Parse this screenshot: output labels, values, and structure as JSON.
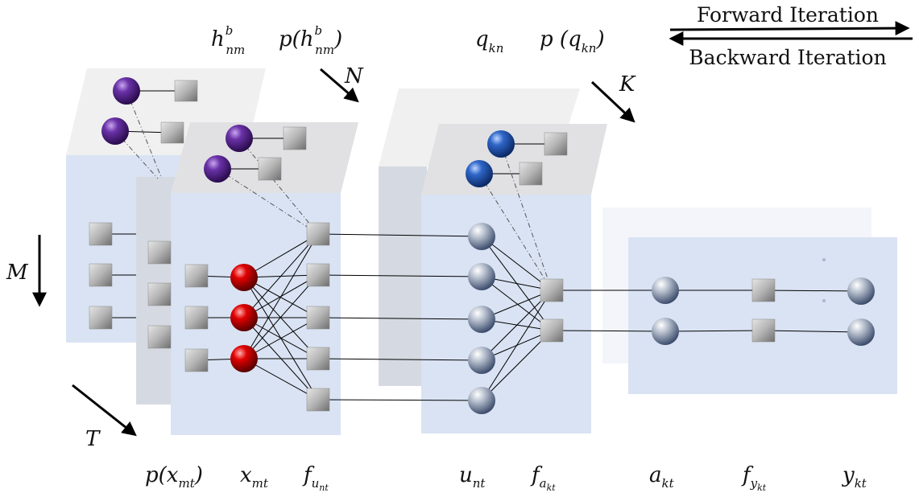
{
  "legend": {
    "forward": "Forward Iteration",
    "backward": "Backward Iteration"
  },
  "dims": {
    "N": "N",
    "K": "K",
    "M": "M",
    "T": "T"
  },
  "top_labels": {
    "h_base": "h",
    "h_sup": "b",
    "h_sub": "nm",
    "ph_open": "p(",
    "ph_base": "h",
    "ph_sup": "b",
    "ph_sub": "nm",
    "ph_close": ")",
    "q_base": "q",
    "q_sub": "kn",
    "pq_open": "p (",
    "pq_base": "q",
    "pq_sub": "kn",
    "pq_close": ")"
  },
  "bottom_labels": {
    "px_open": "p(",
    "px_base": "x",
    "px_sub": "mt",
    "px_close": ")",
    "x_base": "x",
    "x_sub": "mt",
    "fu_base": "f",
    "fu_sub": "u",
    "fu_subsub": "nt",
    "u_base": "u",
    "u_sub": "nt",
    "fa_base": "f",
    "fa_sub": "a",
    "fa_subsub": "kt",
    "a_base": "a",
    "a_sub": "kt",
    "fy_base": "f",
    "fy_sub": "y",
    "fy_subsub": "kt",
    "y_base": "y",
    "y_sub": "kt"
  },
  "colors": {
    "panel_blue": "#dae3f3",
    "panel_gray": "#d5dae2",
    "panel_top": "#e1e1e3",
    "node_purple": "#5b2a8c",
    "node_red": "#d10000",
    "node_blue": "#2c5fb8",
    "node_gray": "#8a96ab"
  }
}
